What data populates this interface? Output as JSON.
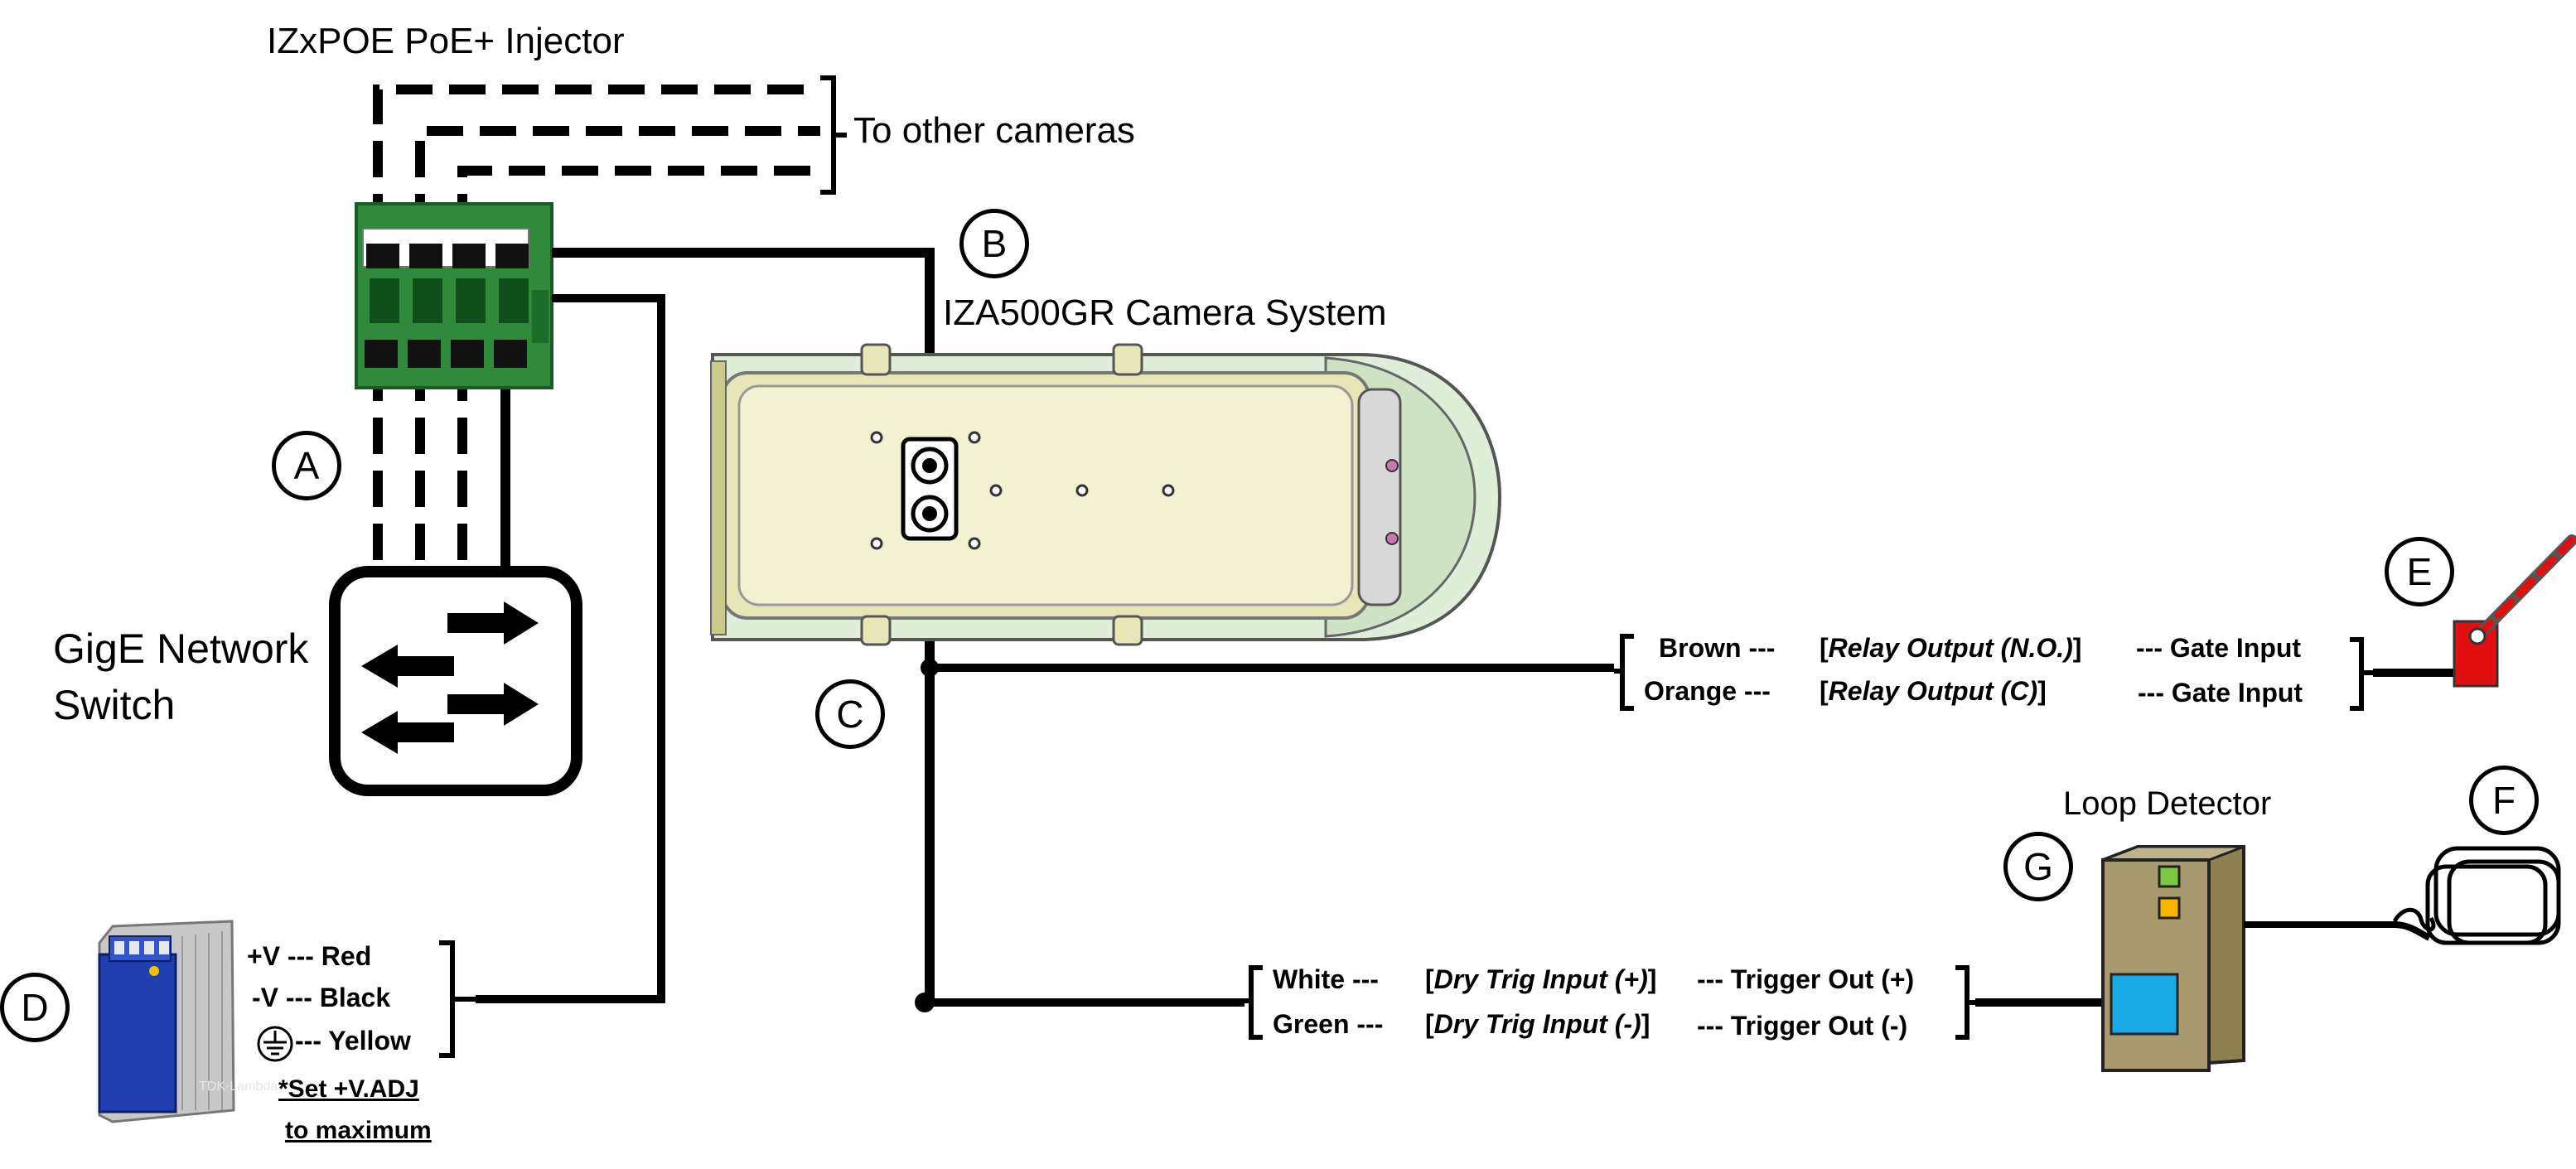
{
  "labels": {
    "injector": "IZxPOE PoE+ Injector",
    "other_cameras": "To other cameras",
    "camera_system": "IZA500GR Camera System",
    "switch_line1": "GigE Network",
    "switch_line2": "Switch",
    "loop_detector": "Loop Detector"
  },
  "markers": {
    "a": "A",
    "b": "B",
    "c": "C",
    "d": "D",
    "e": "E",
    "f": "F",
    "g": "G"
  },
  "power": {
    "rows": [
      {
        "pin": "+V",
        "sep": "---",
        "color": "Red"
      },
      {
        "pin": "-V",
        "sep": "---",
        "color": "Black"
      },
      {
        "pin": "",
        "sep": "---",
        "color": "Yellow"
      }
    ],
    "note_line1": "*Set +V.ADJ",
    "note_line2": "to maximum",
    "psu_brand": "TDK·Lambda",
    "psu_colors": {
      "body": "#1f3fb0",
      "heatsink": "#c8c8c8"
    }
  },
  "relay": {
    "rows": [
      {
        "wire": "Brown ---",
        "function": "Relay Output (N.O.)",
        "target": "--- Gate Input"
      },
      {
        "wire": "Orange ---",
        "function": "Relay Output (C)",
        "target": "--- Gate Input"
      }
    ]
  },
  "trigger": {
    "rows": [
      {
        "wire": "White ---",
        "function": "Dry Trig Input (+)",
        "target": "--- Trigger Out (+)"
      },
      {
        "wire": "Green ---",
        "function": "Dry Trig Input (-)",
        "target": "--- Trigger Out (-)"
      }
    ]
  },
  "colors": {
    "injector_green": "#2f8a3c",
    "camera_body": "#e6e6b8",
    "camera_hood": "#cfe3c4",
    "gate_red": "#e01010",
    "loop_body": "#a89a6e",
    "loop_screen": "#19a9e6",
    "loop_led_green": "#7ac943",
    "loop_led_yellow": "#f7b500"
  }
}
